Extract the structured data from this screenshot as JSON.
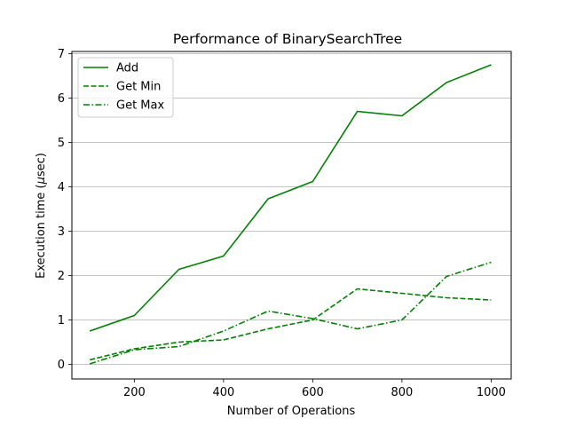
{
  "chart_data": {
    "type": "line",
    "title": "Performance of BinarySearchTree",
    "xlabel": "Number of Operations",
    "ylabel_prefix": "Execution time (",
    "ylabel_mu": "μ",
    "ylabel_suffix": "sec)",
    "x": [
      100,
      200,
      300,
      400,
      500,
      600,
      700,
      800,
      900,
      1000
    ],
    "xlim": [
      60,
      1045
    ],
    "ylim": [
      -0.33,
      7.05
    ],
    "xticks": [
      200,
      400,
      600,
      800,
      1000
    ],
    "yticks": [
      0,
      1,
      2,
      3,
      4,
      5,
      6,
      7
    ],
    "grid": "y-major",
    "legend_position": "top-left",
    "series": [
      {
        "name": "Add",
        "style": "solid",
        "values": [
          0.75,
          1.1,
          2.14,
          2.44,
          3.73,
          4.12,
          5.7,
          5.6,
          6.35,
          6.75
        ]
      },
      {
        "name": "Get Min",
        "style": "dashed",
        "values": [
          0.1,
          0.35,
          0.5,
          0.55,
          0.8,
          1.0,
          1.7,
          1.6,
          1.5,
          1.45
        ]
      },
      {
        "name": "Get Max",
        "style": "dashdot",
        "values": [
          0.01,
          0.33,
          0.4,
          0.75,
          1.2,
          1.03,
          0.8,
          1.0,
          1.98,
          2.3
        ]
      }
    ],
    "colors": {
      "line": "#008000",
      "grid": "#b0b0b0",
      "axis": "#000000"
    }
  }
}
